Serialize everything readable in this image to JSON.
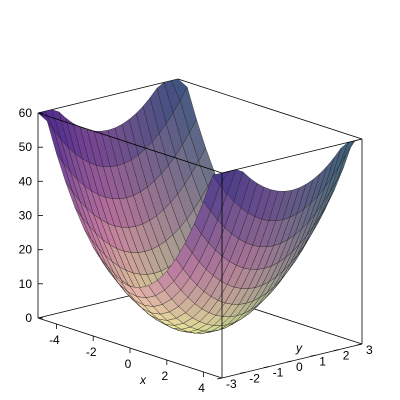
{
  "chart_data": {
    "type": "surface3d",
    "title": "",
    "xlabel": "x",
    "ylabel": "y",
    "zlabel": "",
    "xlim": [
      -5,
      5
    ],
    "ylim": [
      -3,
      3
    ],
    "zlim": [
      0,
      60
    ],
    "x_ticks": [
      -4,
      -2,
      0,
      2,
      4
    ],
    "y_ticks": [
      -3,
      -2,
      -1,
      0,
      1,
      2,
      3
    ],
    "z_ticks": [
      0,
      10,
      20,
      30,
      40,
      50,
      60
    ],
    "x_tick_labels": [
      "-4",
      "-2",
      "0",
      "2",
      "4"
    ],
    "y_tick_labels": [
      "-3",
      "-2",
      "-1",
      "0",
      "1",
      "2",
      "3"
    ],
    "z_tick_labels": [
      "0",
      "10",
      "20",
      "30",
      "40",
      "50",
      "60"
    ],
    "surface": {
      "function": "z = 2*x^2 + 2*y^2",
      "coef_x2": 2,
      "coef_y2": 2,
      "z_min": 0,
      "z_max_clip": 60,
      "x_samples": 21,
      "y_samples": 21
    },
    "colors": {
      "low": "#f6fb9c",
      "mid": "#d985b3",
      "high": "#5a2fb0",
      "alt": "#3a9f7f",
      "mesh": "#1d1d1d",
      "frame": "#000000"
    },
    "grid": false,
    "box": true,
    "legend": "none"
  }
}
